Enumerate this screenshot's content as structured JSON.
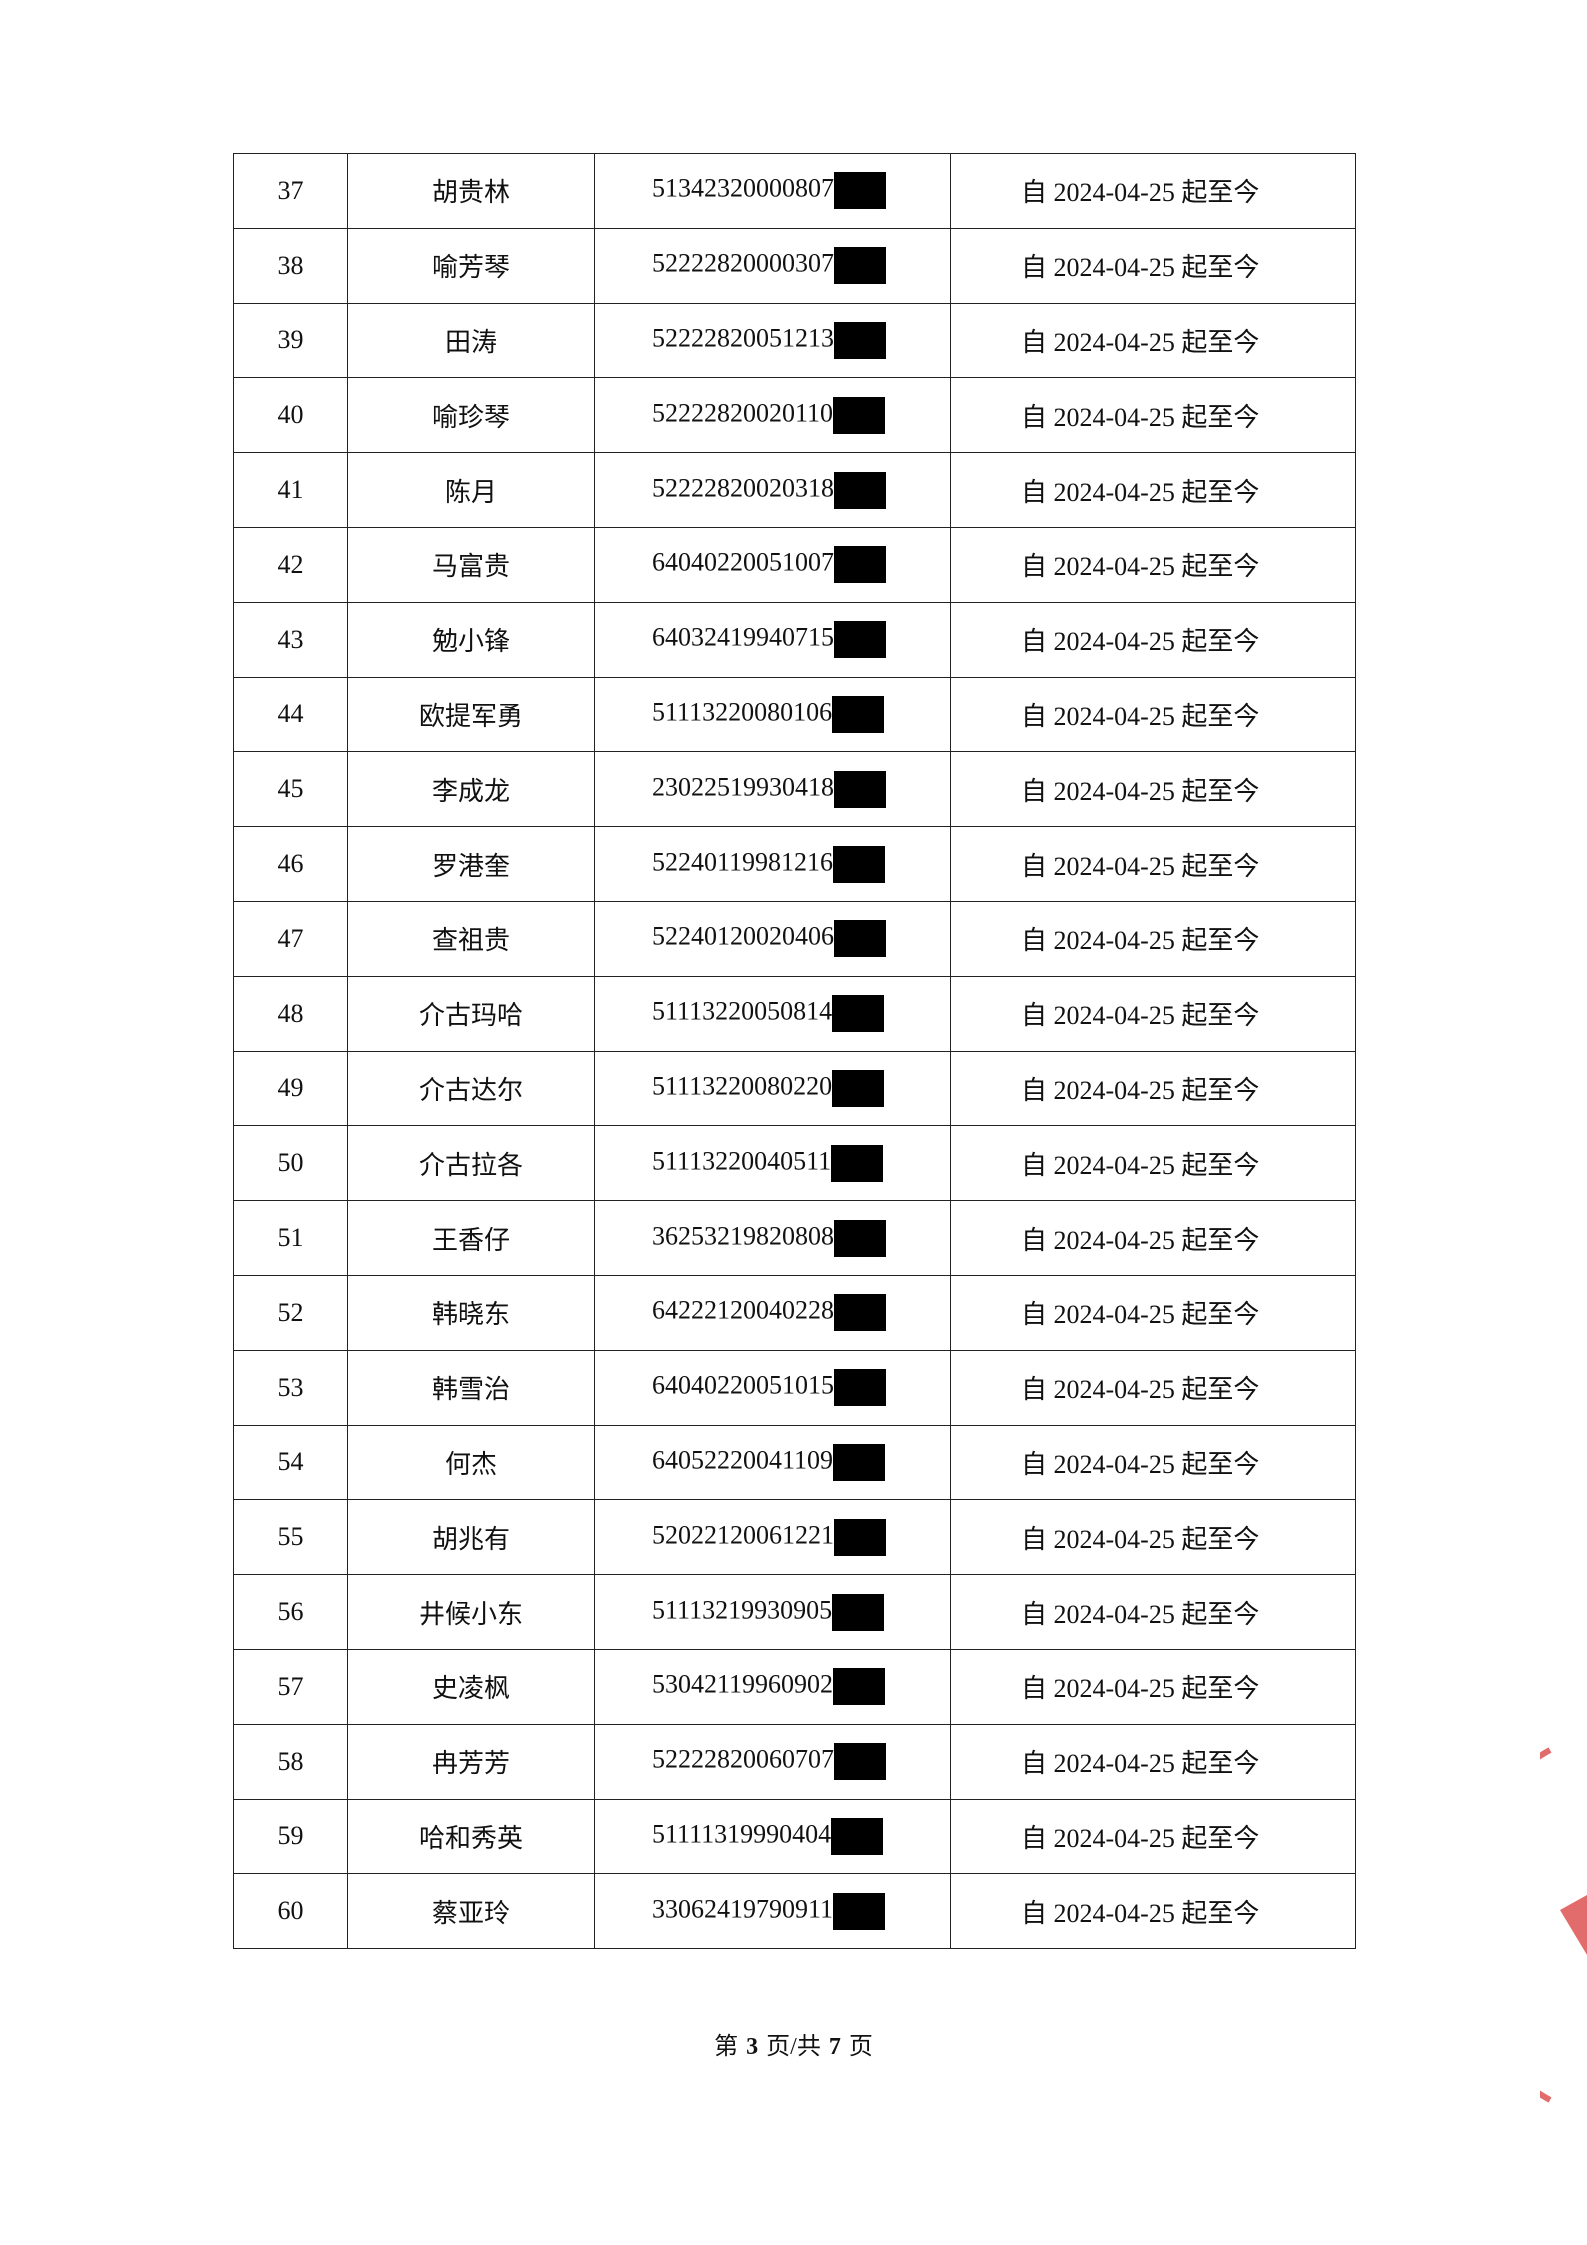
{
  "table": {
    "rows": [
      [
        "37",
        "胡贵林",
        "51342320000807",
        "自 2024-04-25 起至今"
      ],
      [
        "38",
        "喻芳琴",
        "52222820000307",
        "自 2024-04-25 起至今"
      ],
      [
        "39",
        "田涛",
        "52222820051213",
        "自 2024-04-25 起至今"
      ],
      [
        "40",
        "喻珍琴",
        "52222820020110",
        "自 2024-04-25 起至今"
      ],
      [
        "41",
        "陈月",
        "52222820020318",
        "自 2024-04-25 起至今"
      ],
      [
        "42",
        "马富贵",
        "64040220051007",
        "自 2024-04-25 起至今"
      ],
      [
        "43",
        "勉小锋",
        "64032419940715",
        "自 2024-04-25 起至今"
      ],
      [
        "44",
        "欧提军勇",
        "51113220080106",
        "自 2024-04-25 起至今"
      ],
      [
        "45",
        "李成龙",
        "23022519930418",
        "自 2024-04-25 起至今"
      ],
      [
        "46",
        "罗港奎",
        "52240119981216",
        "自 2024-04-25 起至今"
      ],
      [
        "47",
        "查祖贵",
        "52240120020406",
        "自 2024-04-25 起至今"
      ],
      [
        "48",
        "介古玛哈",
        "51113220050814",
        "自 2024-04-25 起至今"
      ],
      [
        "49",
        "介古达尔",
        "51113220080220",
        "自 2024-04-25 起至今"
      ],
      [
        "50",
        "介古拉各",
        "51113220040511",
        "自 2024-04-25 起至今"
      ],
      [
        "51",
        "王香仔",
        "36253219820808",
        "自 2024-04-25 起至今"
      ],
      [
        "52",
        "韩晓东",
        "64222120040228",
        "自 2024-04-25 起至今"
      ],
      [
        "53",
        "韩雪治",
        "64040220051015",
        "自 2024-04-25 起至今"
      ],
      [
        "54",
        "何杰",
        "64052220041109",
        "自 2024-04-25 起至今"
      ],
      [
        "55",
        "胡兆有",
        "52022120061221",
        "自 2024-04-25 起至今"
      ],
      [
        "56",
        "井候小东",
        "51113219930905",
        "自 2024-04-25 起至今"
      ],
      [
        "57",
        "史凌枫",
        "53042119960902",
        "自 2024-04-25 起至今"
      ],
      [
        "58",
        "冉芳芳",
        "52222820060707",
        "自 2024-04-25 起至今"
      ],
      [
        "59",
        "哈和秀英",
        "51111319990404",
        "自 2024-04-25 起至今"
      ],
      [
        "60",
        "蔡亚玲",
        "33062419790911",
        "自 2024-04-25 起至今"
      ]
    ]
  },
  "footer": {
    "parts": [
      "第",
      "3",
      "页/共",
      "7",
      "页"
    ]
  }
}
